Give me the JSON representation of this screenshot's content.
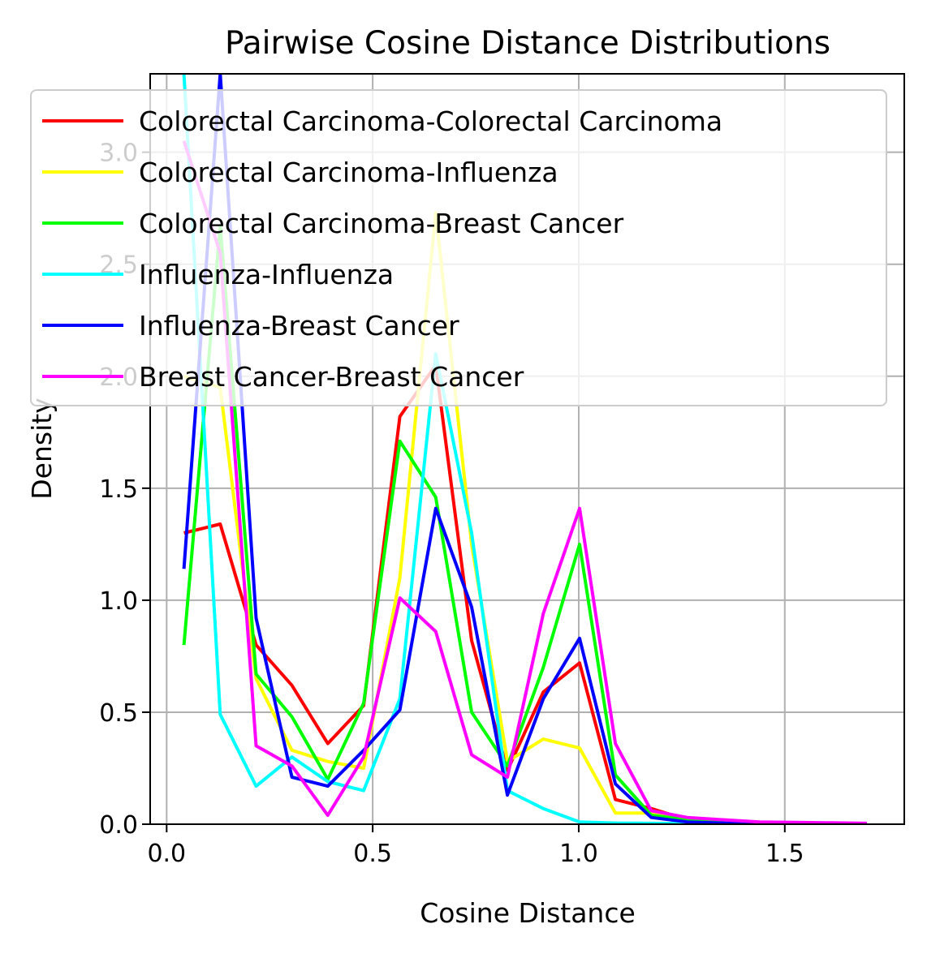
{
  "chart_data": {
    "type": "line",
    "title": "Pairwise Cosine Distance Distributions",
    "xlabel": "Cosine Distance",
    "ylabel": "Density",
    "xlim": [
      -0.04,
      1.79
    ],
    "ylim": [
      0,
      3.35
    ],
    "xticks": [
      {
        "value": 0.0,
        "label": "0.0"
      },
      {
        "value": 0.5,
        "label": "0.5"
      },
      {
        "value": 1.0,
        "label": "1.0"
      },
      {
        "value": 1.5,
        "label": "1.5"
      }
    ],
    "yticks": [
      {
        "value": 0.0,
        "label": "0.0"
      },
      {
        "value": 0.5,
        "label": "0.5"
      },
      {
        "value": 1.0,
        "label": "1.0"
      },
      {
        "value": 1.5,
        "label": "1.5"
      },
      {
        "value": 2.0,
        "label": "2.0"
      },
      {
        "value": 2.5,
        "label": "2.5"
      },
      {
        "value": 3.0,
        "label": "3.0"
      }
    ],
    "grid": true,
    "legend_position": "upper-right",
    "x": [
      0.042,
      0.13,
      0.217,
      0.304,
      0.391,
      0.478,
      0.566,
      0.653,
      0.74,
      0.827,
      0.914,
      1.002,
      1.089,
      1.176,
      1.263,
      1.35,
      1.438,
      1.525,
      1.612,
      1.699
    ],
    "series": [
      {
        "name": "Colorectal Carcinoma-Colorectal Carcinoma",
        "color": "#ff0000",
        "values": [
          1.3,
          1.34,
          0.8,
          0.62,
          0.36,
          0.53,
          1.82,
          2.05,
          0.82,
          0.24,
          0.59,
          0.72,
          0.11,
          0.07,
          0.02,
          0.01,
          0.005,
          0.004,
          0.003,
          0.002
        ]
      },
      {
        "name": "Colorectal Carcinoma-Influenza",
        "color": "#ffff00",
        "values": [
          2.0,
          1.95,
          0.65,
          0.33,
          0.28,
          0.25,
          1.1,
          2.73,
          1.25,
          0.28,
          0.38,
          0.34,
          0.05,
          0.05,
          0.02,
          0.01,
          0.005,
          0.003,
          0.002,
          0.001
        ]
      },
      {
        "name": "Colorectal Carcinoma-Breast Cancer",
        "color": "#00ff00",
        "values": [
          0.8,
          2.67,
          0.67,
          0.48,
          0.2,
          0.54,
          1.71,
          1.46,
          0.5,
          0.26,
          0.7,
          1.25,
          0.22,
          0.04,
          0.02,
          0.01,
          0.005,
          0.003,
          0.002,
          0.001
        ]
      },
      {
        "name": "Influenza-Influenza",
        "color": "#00ffff",
        "values": [
          3.35,
          0.49,
          0.17,
          0.3,
          0.19,
          0.15,
          0.56,
          2.1,
          1.3,
          0.15,
          0.07,
          0.01,
          0.005,
          0.004,
          0.003,
          0.002,
          0.001,
          0.001,
          0.001,
          0.001
        ]
      },
      {
        "name": "Influenza-Breast Cancer",
        "color": "#0000ff",
        "values": [
          1.14,
          3.35,
          0.92,
          0.21,
          0.17,
          0.33,
          0.51,
          1.41,
          0.97,
          0.13,
          0.56,
          0.83,
          0.18,
          0.03,
          0.01,
          0.005,
          0.003,
          0.002,
          0.001,
          0.001
        ]
      },
      {
        "name": "Breast Cancer-Breast Cancer",
        "color": "#ff00ff",
        "values": [
          3.05,
          2.55,
          0.35,
          0.26,
          0.04,
          0.3,
          1.01,
          0.86,
          0.31,
          0.21,
          0.94,
          1.41,
          0.36,
          0.06,
          0.03,
          0.02,
          0.01,
          0.008,
          0.006,
          0.004
        ]
      }
    ]
  }
}
